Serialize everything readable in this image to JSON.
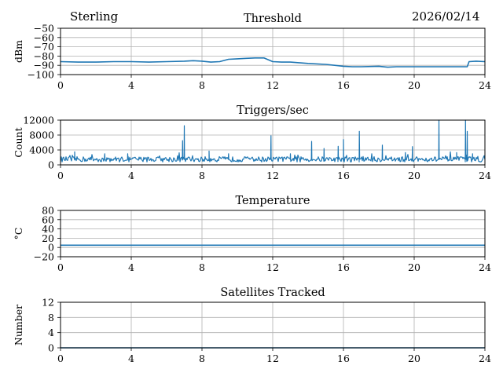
{
  "header": {
    "left": "Sterling",
    "right": "2026/02/14"
  },
  "chart_data": [
    {
      "type": "line",
      "title": "Threshold",
      "xlabel": "",
      "ylabel": "dBm",
      "xlim": [
        0,
        24
      ],
      "ylim": [
        -100,
        -50
      ],
      "xticks": [
        0,
        4,
        8,
        12,
        16,
        20,
        24
      ],
      "yticks": [
        -100,
        -90,
        -80,
        -70,
        -60,
        -50
      ],
      "ytick_labels": [
        "−100",
        "−90",
        "−80",
        "−70",
        "−60",
        "−50"
      ],
      "grid": true,
      "series": [
        {
          "name": "threshold",
          "color": "#1f77b4",
          "x": [
            0,
            1,
            2,
            3,
            4,
            5,
            6,
            7,
            7.5,
            8,
            8.5,
            9,
            9.5,
            10,
            10.5,
            11,
            11.5,
            12,
            12.5,
            13,
            14,
            15,
            15.5,
            16,
            16.5,
            17,
            18,
            18.5,
            19,
            20,
            21,
            22,
            23,
            23.1,
            23.5,
            24
          ],
          "y": [
            -86,
            -86.5,
            -86.5,
            -86,
            -86,
            -86.5,
            -86,
            -85.5,
            -85,
            -85.5,
            -86.5,
            -86,
            -83.5,
            -83,
            -82.5,
            -82,
            -82,
            -86,
            -86.5,
            -86.5,
            -88,
            -89,
            -90,
            -91,
            -91.5,
            -91.5,
            -91,
            -92,
            -91.5,
            -91.5,
            -91.5,
            -91.5,
            -91.5,
            -86,
            -85.5,
            -86
          ]
        }
      ]
    },
    {
      "type": "line",
      "title": "Triggers/sec",
      "xlabel": "",
      "ylabel": "Count",
      "xlim": [
        0,
        24
      ],
      "ylim": [
        0,
        12000
      ],
      "xticks": [
        0,
        4,
        8,
        12,
        16,
        20,
        24
      ],
      "yticks": [
        0,
        4000,
        8000,
        12000
      ],
      "ytick_labels": [
        "0",
        "4000",
        "8000",
        "12000"
      ],
      "grid": true,
      "series": [
        {
          "name": "triggers",
          "color": "#1f77b4",
          "baseline": 1500,
          "spikes": [
            {
              "x": 0.8,
              "y": 3500
            },
            {
              "x": 2.5,
              "y": 3000
            },
            {
              "x": 3.8,
              "y": 3000
            },
            {
              "x": 6.9,
              "y": 6500
            },
            {
              "x": 7.0,
              "y": 10500
            },
            {
              "x": 8.4,
              "y": 3700
            },
            {
              "x": 9.5,
              "y": 3000
            },
            {
              "x": 11.9,
              "y": 7800
            },
            {
              "x": 13.0,
              "y": 3000
            },
            {
              "x": 14.2,
              "y": 6300
            },
            {
              "x": 14.9,
              "y": 4400
            },
            {
              "x": 15.7,
              "y": 5000
            },
            {
              "x": 16.0,
              "y": 6800
            },
            {
              "x": 16.9,
              "y": 9000
            },
            {
              "x": 18.2,
              "y": 5300
            },
            {
              "x": 19.5,
              "y": 3300
            },
            {
              "x": 19.9,
              "y": 4900
            },
            {
              "x": 21.4,
              "y": 12000
            },
            {
              "x": 22.4,
              "y": 3300
            },
            {
              "x": 22.9,
              "y": 12000
            },
            {
              "x": 23.0,
              "y": 9000
            },
            {
              "x": 23.3,
              "y": 3000
            }
          ]
        }
      ]
    },
    {
      "type": "line",
      "title": "Temperature",
      "xlabel": "",
      "ylabel": "°C",
      "xlim": [
        0,
        24
      ],
      "ylim": [
        -20,
        80
      ],
      "xticks": [
        0,
        4,
        8,
        12,
        16,
        20,
        24
      ],
      "yticks": [
        -20,
        0,
        20,
        40,
        60,
        80
      ],
      "ytick_labels": [
        "−20",
        "0",
        "20",
        "40",
        "60",
        "80"
      ],
      "grid": true,
      "series": [
        {
          "name": "temperature",
          "color": "#1f77b4",
          "x": [
            0,
            24
          ],
          "y": [
            5,
            5
          ]
        }
      ]
    },
    {
      "type": "line",
      "title": "Satellites Tracked",
      "xlabel": "",
      "ylabel": "Number",
      "xlim": [
        0,
        24
      ],
      "ylim": [
        0,
        12
      ],
      "xticks": [
        0,
        4,
        8,
        12,
        16,
        20,
        24
      ],
      "yticks": [
        0,
        4,
        8,
        12
      ],
      "ytick_labels": [
        "0",
        "4",
        "8",
        "12"
      ],
      "grid": true,
      "series": [
        {
          "name": "satellites",
          "color": "#1f77b4",
          "x": [
            0,
            24
          ],
          "y": [
            0,
            0
          ]
        }
      ]
    }
  ]
}
